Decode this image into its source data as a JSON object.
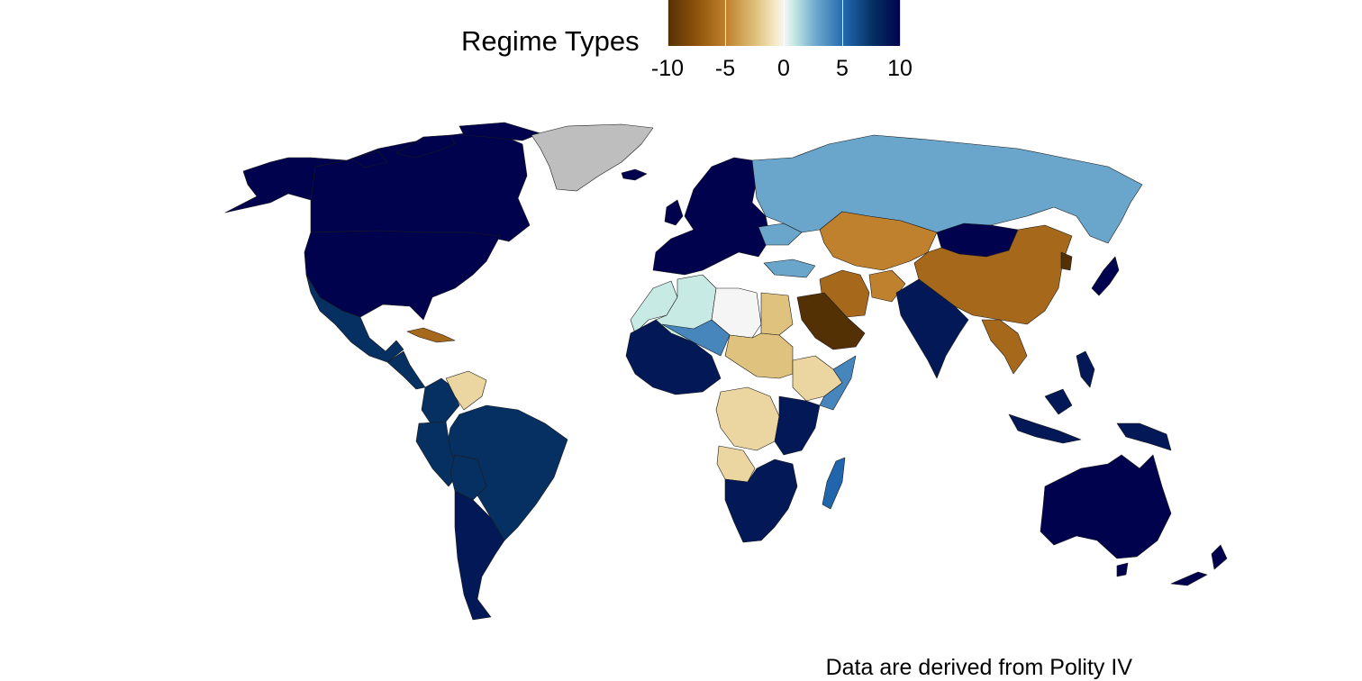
{
  "legend": {
    "title": "Regime Types",
    "ticks": [
      "-10",
      "-5",
      "0",
      "5",
      "10"
    ],
    "range": [
      -10,
      10
    ]
  },
  "caption": "Data are derived from Polity IV",
  "colors": {
    "no_data": "#bebebe",
    "scale": [
      "#543005",
      "#8c510a",
      "#bf812d",
      "#dfc27d",
      "#f6e8c3",
      "#f5f5f5",
      "#c7eae5",
      "#6aa6cc",
      "#2166ac",
      "#053061",
      "#00024d"
    ]
  },
  "regions": [
    {
      "name": "Canada",
      "polity": 10
    },
    {
      "name": "Alaska (USA)",
      "polity": 10
    },
    {
      "name": "United States",
      "polity": 10
    },
    {
      "name": "Greenland",
      "polity": null
    },
    {
      "name": "Mexico",
      "polity": 8
    },
    {
      "name": "Cuba",
      "polity": -7
    },
    {
      "name": "Venezuela",
      "polity": -3
    },
    {
      "name": "Brazil",
      "polity": 8
    },
    {
      "name": "Argentina",
      "polity": 9
    },
    {
      "name": "Russia",
      "polity": 4
    },
    {
      "name": "China",
      "polity": -7
    },
    {
      "name": "Mongolia",
      "polity": 10
    },
    {
      "name": "North Korea",
      "polity": -10
    },
    {
      "name": "Japan",
      "polity": 10
    },
    {
      "name": "India",
      "polity": 9
    },
    {
      "name": "Saudi Arabia",
      "polity": -10
    },
    {
      "name": "Iran",
      "polity": -7
    },
    {
      "name": "Libya",
      "polity": 0
    },
    {
      "name": "Algeria",
      "polity": 2
    },
    {
      "name": "Egypt",
      "polity": -4
    },
    {
      "name": "Sudan",
      "polity": -4
    },
    {
      "name": "DR Congo",
      "polity": -3
    },
    {
      "name": "South Africa",
      "polity": 9
    },
    {
      "name": "Australia",
      "polity": 10
    },
    {
      "name": "Indonesia",
      "polity": 9
    },
    {
      "name": "Western Europe",
      "polity": 10
    },
    {
      "name": "Ukraine",
      "polity": 4
    },
    {
      "name": "Kazakhstan",
      "polity": -6
    },
    {
      "name": "Ethiopia",
      "polity": -3
    },
    {
      "name": "Somalia",
      "polity": 5
    },
    {
      "name": "Kenya",
      "polity": 9
    },
    {
      "name": "Madagascar",
      "polity": 6
    },
    {
      "name": "New Zealand",
      "polity": 10
    }
  ]
}
